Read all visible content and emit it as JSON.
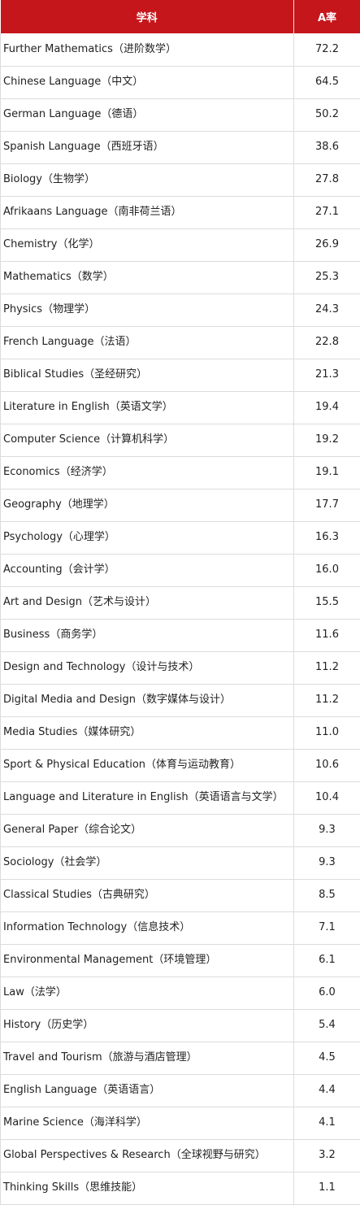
{
  "table": {
    "headers": [
      "学科",
      "A率"
    ],
    "rows": [
      [
        "Further Mathematics（进阶数学）",
        "72.2"
      ],
      [
        "Chinese Language（中文）",
        "64.5"
      ],
      [
        "German Language（德语）",
        "50.2"
      ],
      [
        "Spanish Language（西班牙语）",
        "38.6"
      ],
      [
        "Biology（生物学）",
        "27.8"
      ],
      [
        "Afrikaans Language（南非荷兰语）",
        "27.1"
      ],
      [
        "Chemistry（化学）",
        "26.9"
      ],
      [
        "Mathematics（数学）",
        "25.3"
      ],
      [
        "Physics（物理学）",
        "24.3"
      ],
      [
        "French Language（法语）",
        "22.8"
      ],
      [
        "Biblical Studies（圣经研究）",
        "21.3"
      ],
      [
        "Literature in English（英语文学）",
        "19.4"
      ],
      [
        "Computer Science（计算机科学）",
        "19.2"
      ],
      [
        "Economics（经济学）",
        "19.1"
      ],
      [
        "Geography（地理学）",
        "17.7"
      ],
      [
        "Psychology（心理学）",
        "16.3"
      ],
      [
        "Accounting（会计学）",
        "16.0"
      ],
      [
        "Art and Design（艺术与设计）",
        "15.5"
      ],
      [
        "Business（商务学）",
        "11.6"
      ],
      [
        "Design and Technology（设计与技术）",
        "11.2"
      ],
      [
        "Digital Media and Design（数字媒体与设计）",
        "11.2"
      ],
      [
        "Media Studies（媒体研究）",
        "11.0"
      ],
      [
        "Sport & Physical Education（体育与运动教育）",
        "10.6"
      ],
      [
        "Language and Literature in English（英语语言与文学）",
        "10.4"
      ],
      [
        "General Paper（综合论文）",
        "9.3"
      ],
      [
        "Sociology（社会学）",
        "9.3"
      ],
      [
        "Classical Studies（古典研究）",
        "8.5"
      ],
      [
        "Information Technology（信息技术）",
        "7.1"
      ],
      [
        "Environmental Management（环境管理）",
        "6.1"
      ],
      [
        "Law（法学）",
        "6.0"
      ],
      [
        "History（历史学）",
        "5.4"
      ],
      [
        "Travel and Tourism（旅游与酒店管理）",
        "4.5"
      ],
      [
        "English Language（英语语言）",
        "4.4"
      ],
      [
        "Marine Science（海洋科学）",
        "4.1"
      ],
      [
        "Global Perspectives & Research（全球视野与研究）",
        "3.2"
      ],
      [
        "Thinking Skills（思维技能）",
        "1.1"
      ]
    ]
  },
  "colors": {
    "header_background": "#c5161c",
    "header_text": "#ffffff",
    "border": "#dcdcdc",
    "text": "#222222"
  }
}
